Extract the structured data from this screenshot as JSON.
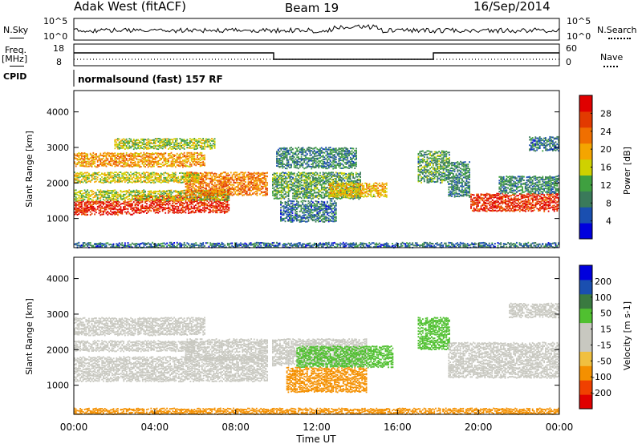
{
  "header": {
    "radar": "Adak West (fitACF)",
    "beam": "Beam 19",
    "date": "16/Sep/2014"
  },
  "left_labels": {
    "nsky": "N.Sky",
    "freq": "Freq.",
    "freq_unit": "[MHz]",
    "cpid": "CPID"
  },
  "right_labels": {
    "nsearch": "N.Search",
    "nave": "Nave"
  },
  "cpid_text": "normalsound (fast) 157 RF",
  "noise_ticks": {
    "top": "10^5",
    "bottom": "10^0"
  },
  "freq_ticks": [
    "18",
    "8"
  ],
  "nave_ticks": [
    "60",
    "0"
  ],
  "colors": {
    "power": [
      "#0000dd",
      "#1a4fb0",
      "#3a7a5a",
      "#3fa040",
      "#cfd100",
      "#f4a500",
      "#f06f00",
      "#e23a00",
      "#e00000"
    ],
    "velocity": [
      "#e00000",
      "#f04000",
      "#f49000",
      "#f0c040",
      "#c8c8c0",
      "#c8c8c0",
      "#50c030",
      "#3a7a40",
      "#1a4fb0",
      "#0000dd"
    ],
    "ground": "#c0c0b8"
  },
  "chart_data": [
    {
      "type": "heatmap",
      "name": "power",
      "ylabel": "Slant Range [km]",
      "xlabel": "",
      "x_ticks": [
        "00:00",
        "04:00",
        "08:00",
        "12:00",
        "16:00",
        "20:00",
        "00:00"
      ],
      "y_ticks": [
        "1000",
        "2000",
        "3000",
        "4000"
      ],
      "ylim": [
        180,
        4600
      ],
      "xlim": [
        0,
        24
      ],
      "colorbar": {
        "label": "Power [dB]",
        "ticks": [
          "28",
          "24",
          "20",
          "16",
          "12",
          "8",
          "4"
        ]
      },
      "bands": [
        {
          "t0": 0.0,
          "t1": 3.0,
          "r0": 1100,
          "r1": 1500,
          "level": 28
        },
        {
          "t0": 3.0,
          "t1": 7.7,
          "r0": 1150,
          "r1": 1650,
          "level": 28
        },
        {
          "t0": 0.0,
          "t1": 7.7,
          "r0": 1500,
          "r1": 1800,
          "level": 14
        },
        {
          "t0": 5.5,
          "t1": 9.6,
          "r0": 1650,
          "r1": 2300,
          "level": 22
        },
        {
          "t0": 0.0,
          "t1": 6.5,
          "r0": 2450,
          "r1": 2850,
          "level": 20
        },
        {
          "t0": 0.0,
          "t1": 6.2,
          "r0": 2000,
          "r1": 2300,
          "level": 16
        },
        {
          "t0": 2.0,
          "t1": 7.0,
          "r0": 2950,
          "r1": 3250,
          "level": 14
        },
        {
          "t0": 9.8,
          "t1": 14.2,
          "r0": 1550,
          "r1": 2300,
          "level": 10
        },
        {
          "t0": 12.6,
          "t1": 15.5,
          "r0": 1600,
          "r1": 2000,
          "level": 18
        },
        {
          "t0": 10.0,
          "t1": 14.0,
          "r0": 2400,
          "r1": 3000,
          "level": 8
        },
        {
          "t0": 10.2,
          "t1": 13.0,
          "r0": 900,
          "r1": 1500,
          "level": 6
        },
        {
          "t0": 17.0,
          "t1": 18.6,
          "r0": 2000,
          "r1": 2900,
          "level": 10
        },
        {
          "t0": 18.5,
          "t1": 19.6,
          "r0": 1600,
          "r1": 2600,
          "level": 8
        },
        {
          "t0": 19.6,
          "t1": 24.0,
          "r0": 1200,
          "r1": 1700,
          "level": 28
        },
        {
          "t0": 21.0,
          "t1": 24.0,
          "r0": 1700,
          "r1": 2200,
          "level": 8
        },
        {
          "t0": 22.5,
          "t1": 24.0,
          "r0": 2900,
          "r1": 3300,
          "level": 6
        },
        {
          "t0": 0.0,
          "t1": 24.0,
          "r0": 180,
          "r1": 320,
          "level": 6
        }
      ]
    },
    {
      "type": "heatmap",
      "name": "velocity",
      "ylabel": "Slant Range [km]",
      "xlabel": "Time UT",
      "x_ticks": [
        "00:00",
        "04:00",
        "08:00",
        "12:00",
        "16:00",
        "20:00",
        "00:00"
      ],
      "y_ticks": [
        "1000",
        "2000",
        "3000",
        "4000"
      ],
      "ylim": [
        180,
        4600
      ],
      "xlim": [
        0,
        24
      ],
      "colorbar": {
        "label": "Velocity [m s-1]",
        "ticks": [
          "200",
          "100",
          "50",
          "15",
          "-15",
          "-50",
          "-100",
          "-200"
        ]
      },
      "bands": [
        {
          "t0": 0.0,
          "t1": 9.6,
          "r0": 1100,
          "r1": 1800,
          "level": 0
        },
        {
          "t0": 5.5,
          "t1": 9.6,
          "r0": 1700,
          "r1": 2300,
          "level": 0
        },
        {
          "t0": 0.0,
          "t1": 6.5,
          "r0": 2400,
          "r1": 2900,
          "level": 0
        },
        {
          "t0": 0.0,
          "t1": 6.0,
          "r0": 1950,
          "r1": 2250,
          "level": 0
        },
        {
          "t0": 9.8,
          "t1": 14.5,
          "r0": 1550,
          "r1": 2300,
          "level": 0
        },
        {
          "t0": 11.0,
          "t1": 15.8,
          "r0": 1500,
          "r1": 2100,
          "level": 40
        },
        {
          "t0": 10.5,
          "t1": 14.5,
          "r0": 800,
          "r1": 1500,
          "level": -40
        },
        {
          "t0": 17.0,
          "t1": 18.6,
          "r0": 2000,
          "r1": 2900,
          "level": 40
        },
        {
          "t0": 18.5,
          "t1": 24.0,
          "r0": 1200,
          "r1": 2200,
          "level": 0
        },
        {
          "t0": 21.5,
          "t1": 24.0,
          "r0": 2900,
          "r1": 3300,
          "level": 0
        },
        {
          "t0": 0.0,
          "t1": 24.0,
          "r0": 180,
          "r1": 350,
          "level": -60
        }
      ]
    }
  ]
}
